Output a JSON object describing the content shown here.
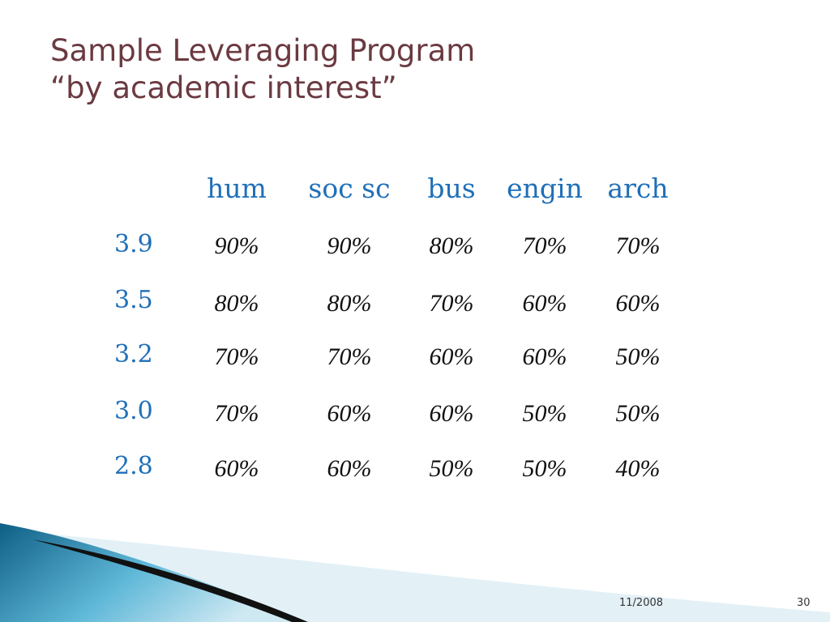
{
  "slide": {
    "title_line1": "Sample Leveraging Program",
    "title_line2": "“by academic interest”",
    "date": "11/2008",
    "page_number": "30"
  },
  "table": {
    "columns": [
      "hum",
      "soc sc",
      "bus",
      "engin",
      "arch"
    ],
    "rows": [
      {
        "label": "3.9",
        "values": [
          "90%",
          "90%",
          "80%",
          "70%",
          "70%"
        ]
      },
      {
        "label": "3.5",
        "values": [
          "80%",
          "80%",
          "70%",
          "60%",
          "60%"
        ]
      },
      {
        "label": "3.2",
        "values": [
          "70%",
          "70%",
          "60%",
          "60%",
          "50%"
        ]
      },
      {
        "label": "3.0",
        "values": [
          "70%",
          "60%",
          "60%",
          "50%",
          "50%"
        ]
      },
      {
        "label": "2.8",
        "values": [
          "60%",
          "60%",
          "50%",
          "50%",
          "40%"
        ]
      }
    ]
  },
  "colors": {
    "title": "#6b3a41",
    "header": "#1f6fb8",
    "swoosh_dark": "#0f5f85",
    "swoosh_light": "#5fb8d8"
  }
}
